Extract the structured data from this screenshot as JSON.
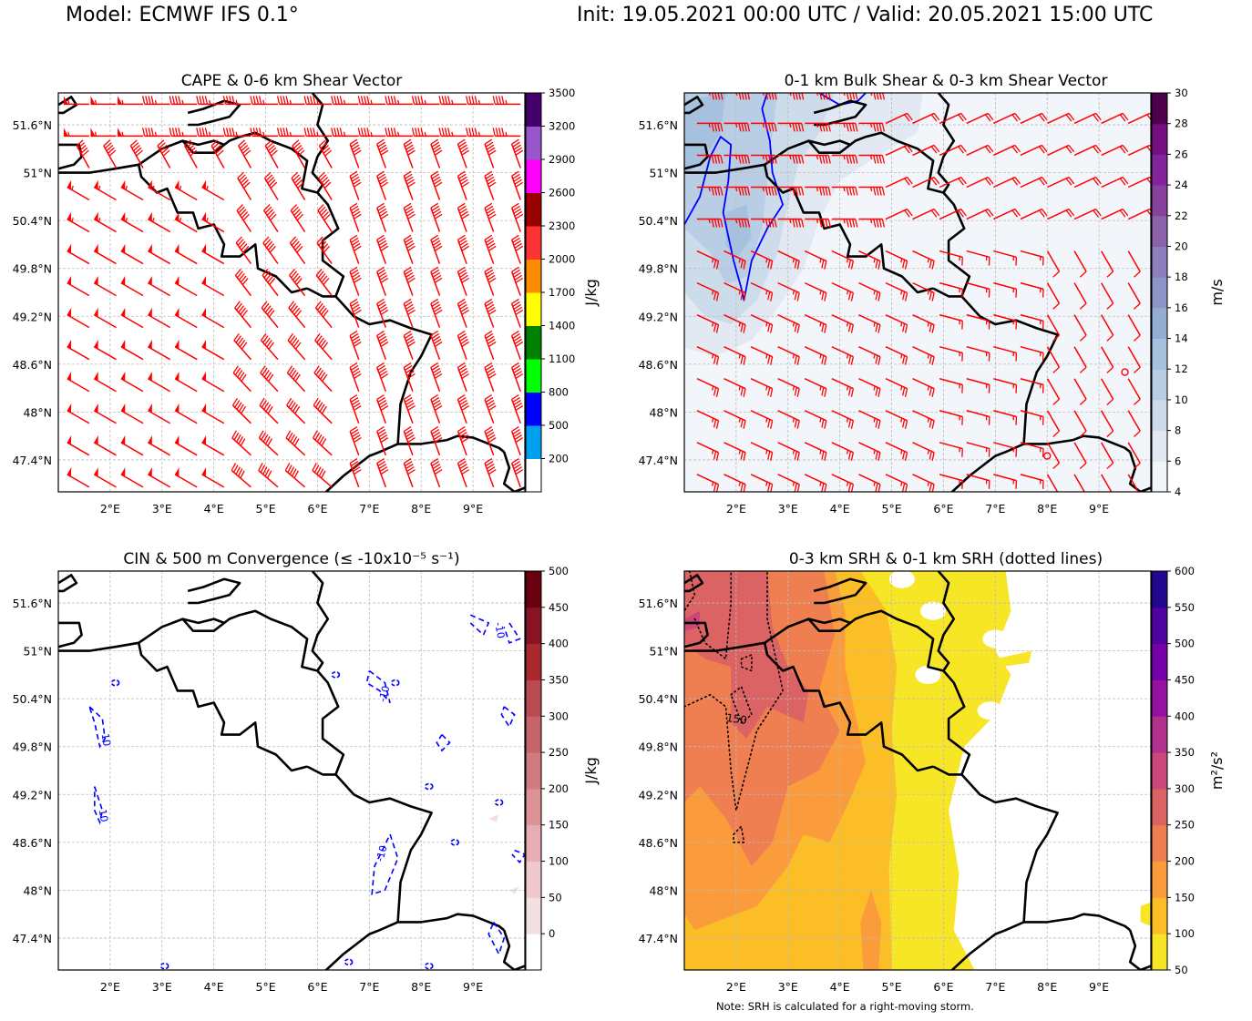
{
  "header": {
    "model": "Model: ECMWF IFS 0.1°",
    "time": "Init: 19.05.2021 00:00 UTC / Valid: 20.05.2021 15:00 UTC"
  },
  "note": "Note: SRH is calculated for a right-moving storm.",
  "chart_data": [
    {
      "id": "cape",
      "type": "heatmap",
      "title": "CAPE & 0-6 km Shear Vector",
      "xlabel": "",
      "ylabel": "",
      "xlim": [
        1.0,
        10.0
      ],
      "ylim": [
        47.0,
        52.0
      ],
      "x_ticks": [
        2,
        3,
        4,
        5,
        6,
        7,
        8,
        9
      ],
      "x_tick_labels": [
        "2°E",
        "3°E",
        "4°E",
        "5°E",
        "6°E",
        "7°E",
        "8°E",
        "9°E"
      ],
      "y_ticks": [
        47.4,
        48.0,
        48.6,
        49.2,
        49.8,
        50.4,
        51.0,
        51.6
      ],
      "y_tick_labels": [
        "47.4°N",
        "48°N",
        "48.6°N",
        "49.2°N",
        "49.8°N",
        "50.4°N",
        "51°N",
        "51.6°N"
      ],
      "grid": true,
      "colorbar": {
        "unit": "J/kg",
        "levels": [
          200,
          500,
          800,
          1100,
          1400,
          1700,
          2000,
          2300,
          2600,
          2900,
          3200,
          3500
        ],
        "tick_labels": [
          "200",
          "500",
          "800",
          "1100",
          "1400",
          "1700",
          "2000",
          "2300",
          "2600",
          "2900",
          "3200",
          "3500"
        ],
        "colors": [
          "#ffffff",
          "#00a0f0",
          "#0000ff",
          "#00ff00",
          "#008000",
          "#ffff00",
          "#ff8c00",
          "#ff3333",
          "#990000",
          "#ff00ff",
          "#9955cc",
          "#44006b"
        ]
      },
      "overlay": "wind barbs (red), 0-6 km shear",
      "field_summary": "CAPE below 200 J/kg over whole domain"
    },
    {
      "id": "shear01",
      "type": "heatmap",
      "title": "0-1 km Bulk Shear & 0-3 km Shear Vector",
      "xlim": [
        1.0,
        10.0
      ],
      "ylim": [
        47.0,
        52.0
      ],
      "x_ticks": [
        2,
        3,
        4,
        5,
        6,
        7,
        8,
        9
      ],
      "x_tick_labels": [
        "2°E",
        "3°E",
        "4°E",
        "5°E",
        "6°E",
        "7°E",
        "8°E",
        "9°E"
      ],
      "y_ticks": [
        47.4,
        48.0,
        48.6,
        49.2,
        49.8,
        50.4,
        51.0,
        51.6
      ],
      "y_tick_labels": [
        "47.4°N",
        "48°N",
        "48.6°N",
        "49.2°N",
        "49.8°N",
        "50.4°N",
        "51°N",
        "51.6°N"
      ],
      "grid": true,
      "colorbar": {
        "unit": "m/s",
        "levels": [
          4,
          6,
          8,
          10,
          12,
          14,
          16,
          18,
          20,
          22,
          24,
          26,
          28,
          30
        ],
        "tick_labels": [
          "4",
          "6",
          "8",
          "10",
          "12",
          "14",
          "16",
          "18",
          "20",
          "22",
          "24",
          "26",
          "28",
          "30"
        ],
        "colors": [
          "#f2f6fa",
          "#e2e9f3",
          "#cddceb",
          "#b9cde4",
          "#a5c1de",
          "#94aed3",
          "#8c96c6",
          "#8c7fbc",
          "#8c62aa",
          "#88419d",
          "#84249a",
          "#730f80",
          "#4d004b"
        ]
      },
      "contour": {
        "color": "#0000ff",
        "level_ms": 12
      },
      "overlay": "wind barbs (red), 0-3 km shear"
    },
    {
      "id": "cin",
      "type": "heatmap",
      "title": "CIN & 500 m Convergence (≤ -10x10⁻⁵ s⁻¹)",
      "xlim": [
        1.0,
        10.0
      ],
      "ylim": [
        47.0,
        52.0
      ],
      "x_ticks": [
        2,
        3,
        4,
        5,
        6,
        7,
        8,
        9
      ],
      "x_tick_labels": [
        "2°E",
        "3°E",
        "4°E",
        "5°E",
        "6°E",
        "7°E",
        "8°E",
        "9°E"
      ],
      "y_ticks": [
        47.4,
        48.0,
        48.6,
        49.2,
        49.8,
        50.4,
        51.0,
        51.6
      ],
      "y_tick_labels": [
        "47.4°N",
        "48°N",
        "48.6°N",
        "49.2°N",
        "49.8°N",
        "50.4°N",
        "51°N",
        "51.6°N"
      ],
      "grid": true,
      "colorbar": {
        "unit": "J/kg",
        "levels": [
          0,
          50,
          100,
          150,
          200,
          250,
          300,
          350,
          400,
          450,
          500
        ],
        "tick_labels": [
          "0",
          "50",
          "100",
          "150",
          "200",
          "250",
          "300",
          "350",
          "400",
          "450",
          "500"
        ],
        "colors": [
          "#ffffff",
          "#f3e1e1",
          "#efc9cc",
          "#e6aeb2",
          "#dd9296",
          "#d17b80",
          "#c7646b",
          "#bb4b53",
          "#a9292f",
          "#8b1424",
          "#6a0010"
        ]
      },
      "contour_labels": [
        "-10",
        "-10",
        "-10",
        "-10",
        "-10"
      ],
      "contour": {
        "color": "#0000ff",
        "style": "dashed",
        "level": -10
      }
    },
    {
      "id": "srh",
      "type": "heatmap",
      "title": "0-3 km SRH & 0-1 km SRH (dotted lines)",
      "xlim": [
        1.0,
        10.0
      ],
      "ylim": [
        47.0,
        52.0
      ],
      "x_ticks": [
        2,
        3,
        4,
        5,
        6,
        7,
        8,
        9
      ],
      "x_tick_labels": [
        "2°E",
        "3°E",
        "4°E",
        "5°E",
        "6°E",
        "7°E",
        "8°E",
        "9°E"
      ],
      "y_ticks": [
        47.4,
        48.0,
        48.6,
        49.2,
        49.8,
        50.4,
        51.0,
        51.6
      ],
      "y_tick_labels": [
        "47.4°N",
        "48°N",
        "48.6°N",
        "49.2°N",
        "49.8°N",
        "50.4°N",
        "51°N",
        "51.6°N"
      ],
      "grid": true,
      "colorbar": {
        "unit": "m²/s²",
        "levels": [
          50,
          100,
          150,
          200,
          250,
          300,
          350,
          400,
          450,
          500,
          550,
          600
        ],
        "tick_labels": [
          "50",
          "100",
          "150",
          "200",
          "250",
          "300",
          "350",
          "400",
          "450",
          "500",
          "550",
          "600"
        ],
        "colors": [
          "#f6e626",
          "#fcbe26",
          "#fa9c3c",
          "#ef7e50",
          "#dc6364",
          "#c9477a",
          "#b2318e",
          "#9512a1",
          "#7402a8",
          "#4f02a2",
          "#23078f"
        ]
      },
      "contour_labels": [
        "150"
      ],
      "contour": {
        "color": "#000000",
        "style": "dotted",
        "level": 150
      }
    }
  ]
}
